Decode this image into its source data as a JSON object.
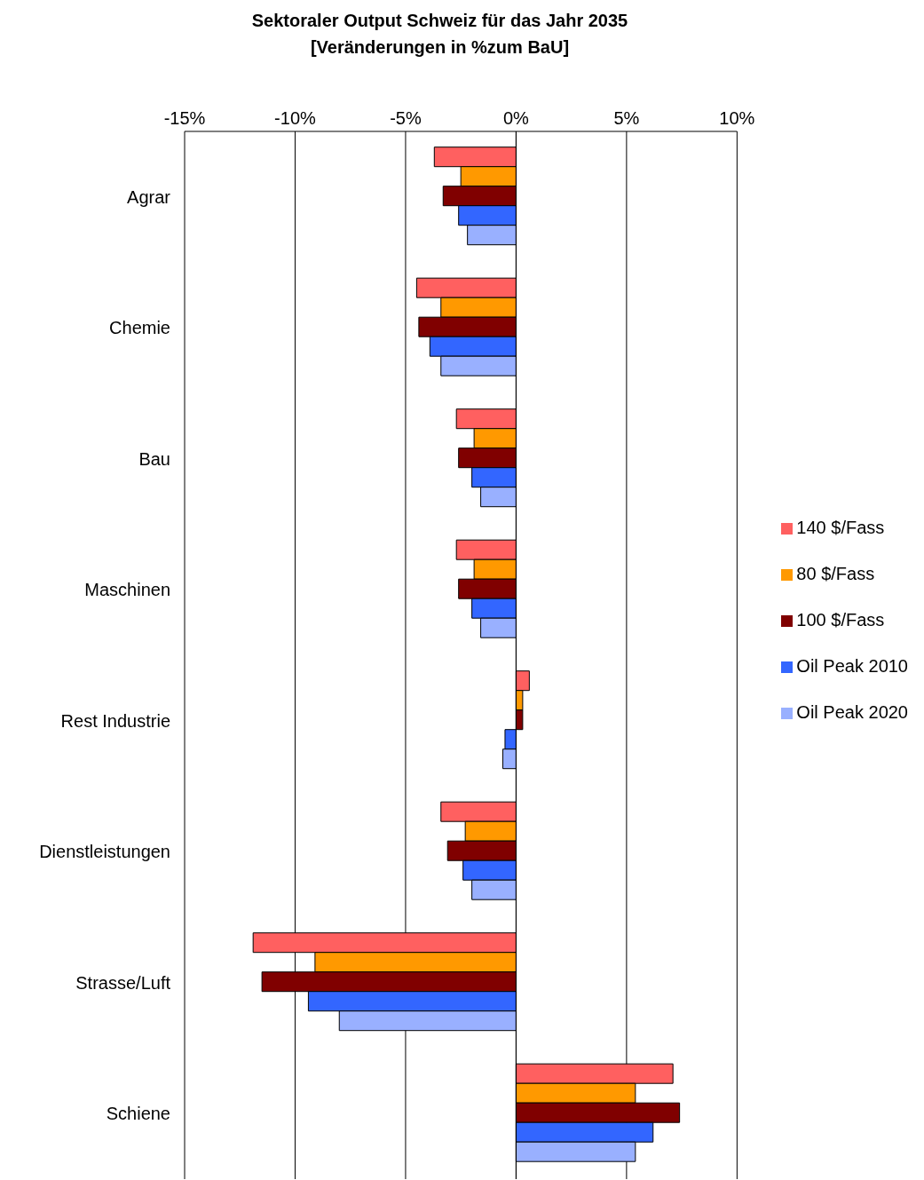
{
  "chart_data": {
    "type": "bar",
    "orientation": "horizontal",
    "title": "Sektoraler Output Schweiz für das Jahr 2035\n[Veränderungen in %zum BaU]",
    "categories": [
      "Agrar",
      "Chemie",
      "Bau",
      "Maschinen",
      "Rest Industrie",
      "Dienstleistungen",
      "Strasse/Luft",
      "Schiene"
    ],
    "series": [
      {
        "name": "140 $/Fass",
        "color": "#ff6060",
        "values": [
          -3.7,
          -4.5,
          -2.7,
          -2.7,
          0.6,
          -3.4,
          -11.9,
          7.1
        ]
      },
      {
        "name": "80 $/Fass",
        "color": "#ff9900",
        "values": [
          -2.5,
          -3.4,
          -1.9,
          -1.9,
          0.3,
          -2.3,
          -9.1,
          5.4
        ]
      },
      {
        "name": "100 $/Fass",
        "color": "#800000",
        "values": [
          -3.3,
          -4.4,
          -2.6,
          -2.6,
          0.3,
          -3.1,
          -11.5,
          7.4
        ]
      },
      {
        "name": "Oil Peak 2010",
        "color": "#3366ff",
        "values": [
          -2.6,
          -3.9,
          -2.0,
          -2.0,
          -0.5,
          -2.4,
          -9.4,
          6.2
        ]
      },
      {
        "name": "Oil Peak 2020",
        "color": "#99b0ff",
        "values": [
          -2.2,
          -3.4,
          -1.6,
          -1.6,
          -0.6,
          -2.0,
          -8.0,
          5.4
        ]
      }
    ],
    "xlim": [
      -15,
      10
    ],
    "xticks": [
      {
        "value": -15,
        "label": "-15%"
      },
      {
        "value": -10,
        "label": "-10%"
      },
      {
        "value": -5,
        "label": "-5%"
      },
      {
        "value": 0,
        "label": "0%"
      },
      {
        "value": 5,
        "label": "5%"
      },
      {
        "value": 10,
        "label": "10%"
      }
    ],
    "grid": "x",
    "legend": "right"
  }
}
